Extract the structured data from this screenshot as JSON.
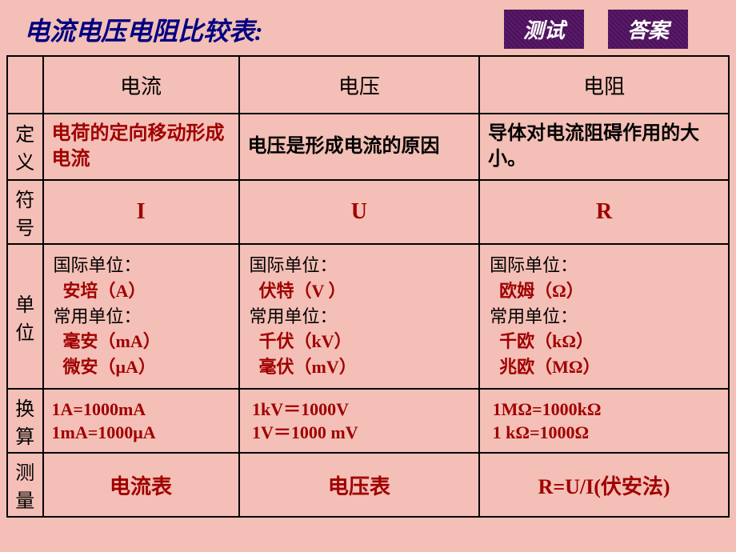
{
  "title": "电流电压电阻比较表:",
  "buttons": {
    "test": "测试",
    "answer": "答案"
  },
  "columns": {
    "current": "电流",
    "voltage": "电压",
    "resistance": "电阻"
  },
  "rows": {
    "definition": "定义",
    "symbol": "符号",
    "unit": "单位",
    "conversion": "换算",
    "measurement": "测量"
  },
  "definitions": {
    "current": "电荷的定向移动形成电流",
    "voltage": "电压是形成电流的原因",
    "resistance": "导体对电流阻碍作用的大小。"
  },
  "symbols": {
    "current": "I",
    "voltage": "U",
    "resistance": "R"
  },
  "units": {
    "intl_label": "国际单位：",
    "common_label": "常用单位：",
    "current": {
      "intl": "安培（A）",
      "common1": "毫安（mA）",
      "common2": "微安（μA）"
    },
    "voltage": {
      "intl": "伏特（V ）",
      "common1": "千伏（kV）",
      "common2": "毫伏（mV）"
    },
    "resistance": {
      "intl": "欧姆（Ω）",
      "common1": "千欧（kΩ）",
      "common2": "兆欧（MΩ）"
    }
  },
  "conversions": {
    "current1": "1A=1000mA",
    "current2": "1mA=1000μA",
    "voltage1": "1kV＝1000V",
    "voltage2": "1V＝1000 mV",
    "resistance1": "1MΩ=1000kΩ",
    "resistance2": "1 kΩ=1000Ω"
  },
  "measurements": {
    "current": "电流表",
    "voltage": "电压表",
    "resistance": "R=U/I(伏安法)"
  },
  "colors": {
    "background": "#f4bfb6",
    "title": "#000080",
    "button_bg": "#5a1a6a",
    "button_text": "#ffffff",
    "black": "#000000",
    "red": "#a00000",
    "border": "#000000"
  }
}
